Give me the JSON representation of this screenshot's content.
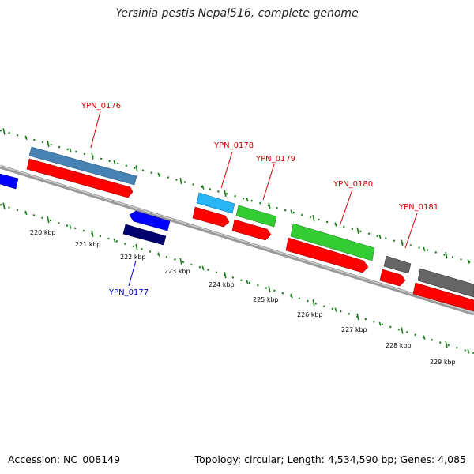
{
  "title": "Yersinia pestis Nepal516, complete genome",
  "footer": {
    "accession": "Accession: NC_008149",
    "stats": "Topology: circular; Length: 4,534,590 bp; Genes: 4,085"
  },
  "ticks": [
    "220 kbp",
    "221 kbp",
    "222 kbp",
    "223 kbp",
    "224 kbp",
    "225 kbp",
    "226 kbp",
    "227 kbp",
    "228 kbp",
    "229 kbp"
  ],
  "genes": [
    {
      "name": "YPN_0176",
      "color": "#cc0000"
    },
    {
      "name": "YPN_0177",
      "color": "#0000cc"
    },
    {
      "name": "YPN_0178",
      "color": "#cc0000"
    },
    {
      "name": "YPN_0179",
      "color": "#cc0000"
    },
    {
      "name": "YPN_0180",
      "color": "#cc0000"
    },
    {
      "name": "YPN_0181",
      "color": "#cc0000"
    }
  ],
  "colors": {
    "backbone": "#888888",
    "tick": "#1a7a1a",
    "forward_cds": "#ff0000",
    "reverse_cds": "#0000ff",
    "steelblue": "#4682b4",
    "lightblue": "#29b6f6",
    "green": "#33cc33",
    "navy": "#00006e",
    "gray": "#666666"
  }
}
